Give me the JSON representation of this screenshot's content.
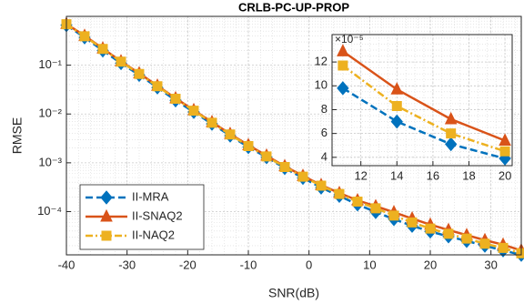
{
  "chart_data": [
    {
      "type": "line",
      "title": "CRLB-PC-UP-PROP",
      "x_label": "SNR(dB)",
      "y_label": "RMSE",
      "y_scale": "log",
      "grid": true,
      "minor_grid": true,
      "legend": "lower left",
      "x": [
        -40,
        -37,
        -34,
        -31,
        -28,
        -25,
        -22,
        -19,
        -16,
        -13,
        -10,
        -7,
        -4,
        -1,
        2,
        5,
        8,
        11,
        14,
        17,
        20,
        23,
        26,
        29,
        32,
        35
      ],
      "xlim": [
        -40,
        35
      ],
      "xticks": [
        -40,
        -30,
        -20,
        -10,
        0,
        10,
        20,
        30
      ],
      "ylim": [
        1.3e-05,
        1
      ],
      "yticks": [
        {
          "value": 0.0001,
          "label": "10⁻⁴"
        },
        {
          "value": 0.001,
          "label": "10⁻³"
        },
        {
          "value": 0.01,
          "label": "10⁻²"
        },
        {
          "value": 0.1,
          "label": "10⁻¹"
        }
      ],
      "series": [
        {
          "name": "II-MRA",
          "color": "#0072BD",
          "line_style": "dashed",
          "marker": "diamond",
          "values": [
            0.66,
            0.37,
            0.2,
            0.11,
            0.063,
            0.035,
            0.019,
            0.011,
            0.0063,
            0.0036,
            0.0021,
            0.0013,
            0.00078,
            0.00049,
            0.00031,
            0.00021,
            0.00014,
            9.8e-05,
            7e-05,
            5.1e-05,
            3.9e-05,
            3.1e-05,
            2.5e-05,
            2e-05,
            1.6e-05,
            1.3e-05
          ]
        },
        {
          "name": "II-SNAQ2",
          "color": "#D95319",
          "line_style": "solid",
          "marker": "triangle",
          "values": [
            0.7,
            0.4,
            0.22,
            0.12,
            0.068,
            0.038,
            0.021,
            0.012,
            0.0068,
            0.0039,
            0.0023,
            0.0014,
            0.00085,
            0.00054,
            0.00035,
            0.00024,
            0.00017,
            0.000129,
            9.7e-05,
            7.2e-05,
            5.4e-05,
            4.2e-05,
            3.3e-05,
            2.6e-05,
            2.1e-05,
            1.6e-05
          ]
        },
        {
          "name": "II-NAQ2",
          "color": "#EDB120",
          "line_style": "dashdot",
          "marker": "square",
          "values": [
            0.69,
            0.39,
            0.215,
            0.118,
            0.066,
            0.037,
            0.0205,
            0.0117,
            0.0066,
            0.0038,
            0.0022,
            0.00135,
            0.00082,
            0.00052,
            0.00034,
            0.00023,
            0.00016,
            0.000117,
            8.3e-05,
            6e-05,
            4.5e-05,
            3.5e-05,
            2.8e-05,
            2.2e-05,
            1.8e-05,
            1.4e-05
          ]
        }
      ]
    },
    {
      "type": "line",
      "y_scale": "linear",
      "grid": true,
      "minor_grid": true,
      "y_exponent_label": "×10⁻⁵",
      "x": [
        11,
        14,
        17,
        20
      ],
      "xlim": [
        10.4,
        20.4
      ],
      "xticks": [
        12,
        14,
        16,
        18,
        20
      ],
      "ylim": [
        3.3,
        14.3
      ],
      "yticks": [
        4,
        6,
        8,
        10,
        12
      ],
      "series": [
        {
          "color": "#0072BD",
          "line_style": "dashed",
          "marker": "diamond",
          "values": [
            9.8,
            7.0,
            5.1,
            3.9
          ]
        },
        {
          "color": "#D95319",
          "line_style": "solid",
          "marker": "triangle",
          "values": [
            12.9,
            9.7,
            7.2,
            5.4
          ]
        },
        {
          "color": "#EDB120",
          "line_style": "dashdot",
          "marker": "square",
          "values": [
            11.7,
            8.3,
            6.0,
            4.5
          ]
        }
      ]
    }
  ]
}
